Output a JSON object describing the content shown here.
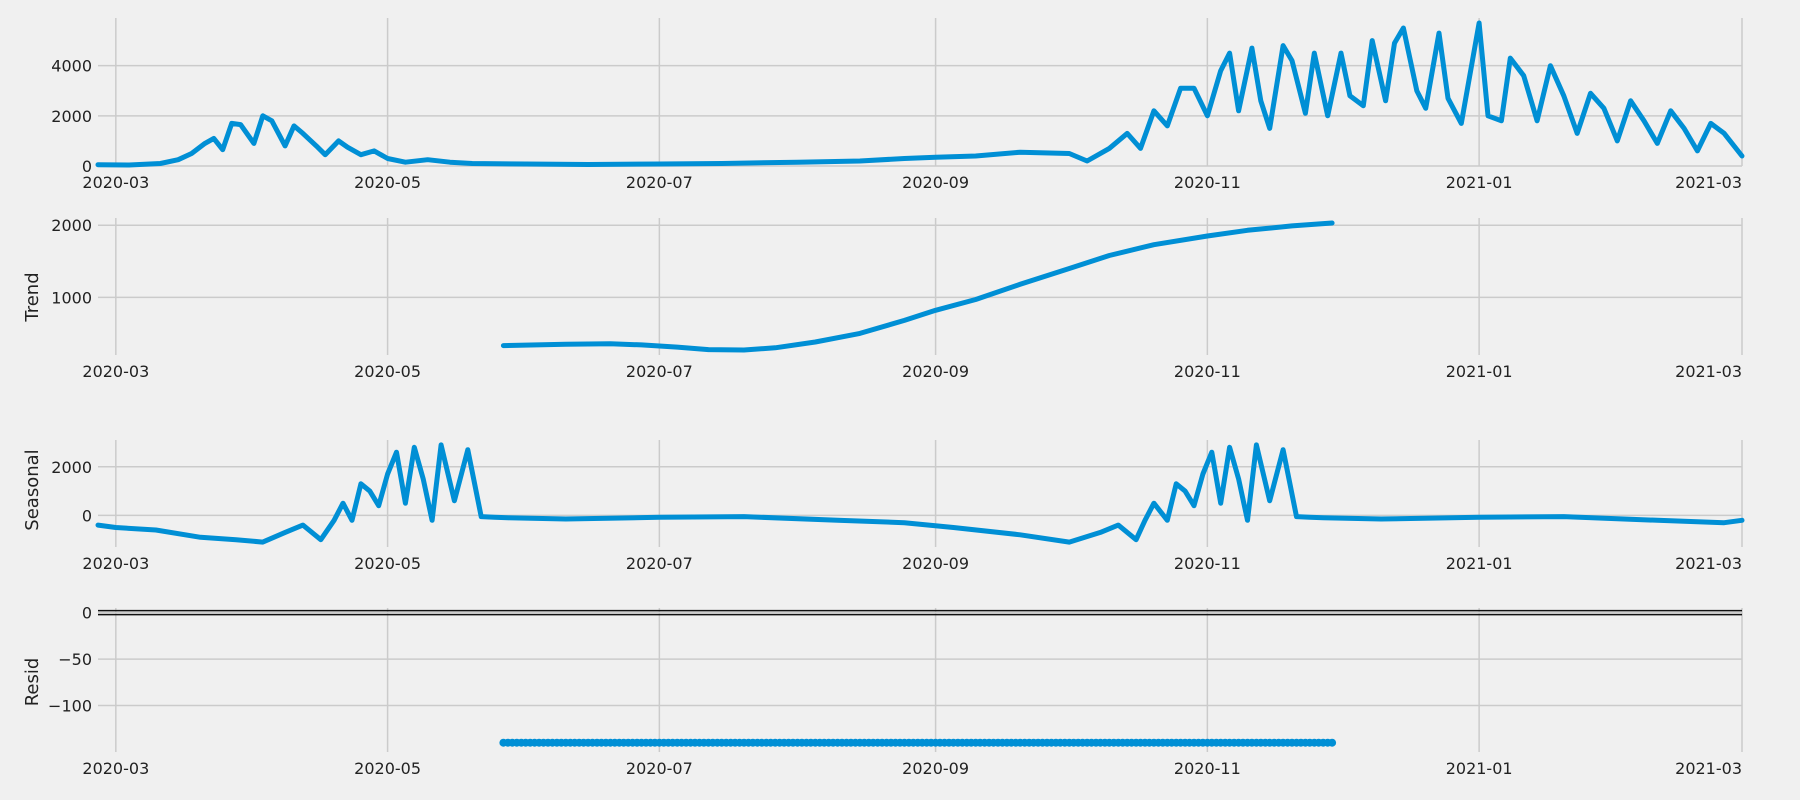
{
  "chart_data": [
    {
      "type": "line",
      "panel": "observed",
      "ylabel": "",
      "ylim": [
        0,
        5900
      ],
      "xlim": [
        "2020-02-26",
        "2021-03-01"
      ],
      "yticks": [
        0,
        2000,
        4000
      ],
      "ytick_labels": [
        "0",
        "2000",
        "4000"
      ],
      "xtick_labels": [
        "2020-03",
        "2020-05",
        "2020-07",
        "2020-09",
        "2020-11",
        "2021-01",
        "2021-03"
      ],
      "grid": true,
      "series": [
        {
          "x": [
            "2020-02-26",
            "2020-03-04",
            "2020-03-11",
            "2020-03-15",
            "2020-03-18",
            "2020-03-21",
            "2020-03-23",
            "2020-03-25",
            "2020-03-27",
            "2020-03-29",
            "2020-04-01",
            "2020-04-03",
            "2020-04-05",
            "2020-04-08",
            "2020-04-10",
            "2020-04-12",
            "2020-04-15",
            "2020-04-17",
            "2020-04-20",
            "2020-04-22",
            "2020-04-25",
            "2020-04-28",
            "2020-05-01",
            "2020-05-05",
            "2020-05-10",
            "2020-05-15",
            "2020-05-20",
            "2020-06-01",
            "2020-06-15",
            "2020-07-01",
            "2020-07-15",
            "2020-08-01",
            "2020-08-15",
            "2020-08-25",
            "2020-09-01",
            "2020-09-10",
            "2020-09-20",
            "2020-10-01",
            "2020-10-05",
            "2020-10-10",
            "2020-10-14",
            "2020-10-17",
            "2020-10-20",
            "2020-10-23",
            "2020-10-26",
            "2020-10-29",
            "2020-11-01",
            "2020-11-04",
            "2020-11-06",
            "2020-11-08",
            "2020-11-11",
            "2020-11-13",
            "2020-11-15",
            "2020-11-18",
            "2020-11-20",
            "2020-11-23",
            "2020-11-25",
            "2020-11-28",
            "2020-12-01",
            "2020-12-03",
            "2020-12-06",
            "2020-12-08",
            "2020-12-11",
            "2020-12-13",
            "2020-12-15",
            "2020-12-18",
            "2020-12-20",
            "2020-12-23",
            "2020-12-25",
            "2020-12-28",
            "2021-01-01",
            "2021-01-03",
            "2021-01-06",
            "2021-01-08",
            "2021-01-11",
            "2021-01-14",
            "2021-01-17",
            "2021-01-20",
            "2021-01-23",
            "2021-01-26",
            "2021-01-29",
            "2021-02-01",
            "2021-02-04",
            "2021-02-07",
            "2021-02-10",
            "2021-02-13",
            "2021-02-16",
            "2021-02-19",
            "2021-02-22",
            "2021-02-25",
            "2021-03-01"
          ],
          "y": [
            50,
            40,
            100,
            250,
            500,
            900,
            1100,
            650,
            1700,
            1650,
            900,
            2000,
            1800,
            800,
            1600,
            1300,
            800,
            450,
            1000,
            750,
            450,
            600,
            300,
            150,
            250,
            150,
            100,
            80,
            60,
            80,
            100,
            150,
            200,
            300,
            350,
            400,
            550,
            500,
            200,
            700,
            1300,
            700,
            2200,
            1600,
            3100,
            3100,
            2000,
            3800,
            4500,
            2200,
            4700,
            2600,
            1500,
            4800,
            4200,
            2100,
            4500,
            2000,
            4500,
            2800,
            2400,
            5000,
            2600,
            4900,
            5500,
            3000,
            2300,
            5300,
            2700,
            1700,
            5700,
            2000,
            1800,
            4300,
            3600,
            1800,
            4000,
            2800,
            1300,
            2900,
            2300,
            1000,
            2600,
            1800,
            900,
            2200,
            1500,
            600,
            1700,
            1300,
            400
          ]
        }
      ]
    },
    {
      "type": "line",
      "panel": "trend",
      "ylabel": "Trend",
      "ylim": [
        200,
        2100
      ],
      "xlim": [
        "2020-02-26",
        "2021-03-01"
      ],
      "yticks": [
        1000,
        2000
      ],
      "ytick_labels": [
        "1000",
        "2000"
      ],
      "xtick_labels": [
        "2020-03",
        "2020-05",
        "2020-07",
        "2020-09",
        "2020-11",
        "2021-01",
        "2021-03"
      ],
      "grid": true,
      "series": [
        {
          "x": [
            "2020-05-27",
            "2020-06-10",
            "2020-06-20",
            "2020-06-27",
            "2020-07-05",
            "2020-07-12",
            "2020-07-20",
            "2020-07-27",
            "2020-08-05",
            "2020-08-15",
            "2020-08-25",
            "2020-09-01",
            "2020-09-10",
            "2020-09-20",
            "2020-10-01",
            "2020-10-10",
            "2020-10-20",
            "2020-11-01",
            "2020-11-10",
            "2020-11-20",
            "2020-11-29"
          ],
          "y": [
            330,
            350,
            355,
            340,
            310,
            275,
            270,
            300,
            380,
            500,
            680,
            820,
            970,
            1180,
            1400,
            1580,
            1730,
            1850,
            1930,
            1990,
            2030
          ]
        }
      ]
    },
    {
      "type": "line",
      "panel": "seasonal",
      "ylabel": "Seasonal",
      "ylim": [
        -1300,
        3100
      ],
      "xlim": [
        "2020-02-26",
        "2021-03-01"
      ],
      "yticks": [
        0,
        2000
      ],
      "ytick_labels": [
        "0",
        "2000"
      ],
      "xtick_labels": [
        "2020-03",
        "2020-05",
        "2020-07",
        "2020-09",
        "2020-11",
        "2021-01",
        "2021-03"
      ],
      "grid": true,
      "series": [
        {
          "x": [
            "2020-02-26",
            "2020-03-01",
            "2020-03-10",
            "2020-03-20",
            "2020-03-28",
            "2020-04-03",
            "2020-04-08",
            "2020-04-12",
            "2020-04-16",
            "2020-04-19",
            "2020-04-21",
            "2020-04-23",
            "2020-04-25",
            "2020-04-27",
            "2020-04-29",
            "2020-05-01",
            "2020-05-03",
            "2020-05-05",
            "2020-05-07",
            "2020-05-09",
            "2020-05-11",
            "2020-05-13",
            "2020-05-16",
            "2020-05-19",
            "2020-05-22",
            "2020-05-25",
            "2020-05-28",
            "2020-06-10",
            "2020-07-01",
            "2020-07-20",
            "2020-08-10",
            "2020-08-25",
            "2020-09-05",
            "2020-09-20",
            "2020-10-01",
            "2020-10-08",
            "2020-10-12",
            "2020-10-16",
            "2020-10-18",
            "2020-10-20",
            "2020-10-23",
            "2020-10-25",
            "2020-10-27",
            "2020-10-29",
            "2020-10-31",
            "2020-11-02",
            "2020-11-04",
            "2020-11-06",
            "2020-11-08",
            "2020-11-10",
            "2020-11-12",
            "2020-11-15",
            "2020-11-18",
            "2020-11-21",
            "2020-11-24",
            "2020-11-27",
            "2020-12-10",
            "2021-01-01",
            "2021-01-20",
            "2021-02-10",
            "2021-02-25",
            "2021-03-01"
          ],
          "y": [
            -400,
            -500,
            -600,
            -900,
            -1000,
            -1100,
            -700,
            -400,
            -1000,
            -200,
            500,
            -200,
            1300,
            1000,
            400,
            1700,
            2600,
            500,
            2800,
            1500,
            -200,
            2900,
            600,
            2700,
            -50,
            -80,
            -100,
            -150,
            -80,
            -50,
            -200,
            -300,
            -500,
            -800,
            -1100,
            -700,
            -400,
            -1000,
            -200,
            500,
            -200,
            1300,
            1000,
            400,
            1700,
            2600,
            500,
            2800,
            1500,
            -200,
            2900,
            600,
            2700,
            -50,
            -80,
            -100,
            -150,
            -80,
            -50,
            -200,
            -300,
            -200
          ]
        }
      ]
    },
    {
      "type": "scatter",
      "panel": "resid",
      "ylabel": "Resid",
      "ylim": [
        -150,
        5
      ],
      "xlim": [
        "2020-02-26",
        "2021-03-01"
      ],
      "yticks": [
        -100,
        -50,
        0
      ],
      "ytick_labels": [
        "−100",
        "−50",
        "0"
      ],
      "xtick_labels": [
        "2020-03",
        "2020-05",
        "2020-07",
        "2020-09",
        "2020-11",
        "2021-01",
        "2021-03"
      ],
      "grid": true,
      "zero_line": true,
      "series": [
        {
          "x_start": "2020-05-27",
          "x_end": "2020-11-29",
          "y": -140
        }
      ]
    }
  ],
  "colors": {
    "line": "#008fd5",
    "background": "#f0f0f0",
    "grid": "#cbcbcb",
    "text": "#222222"
  }
}
